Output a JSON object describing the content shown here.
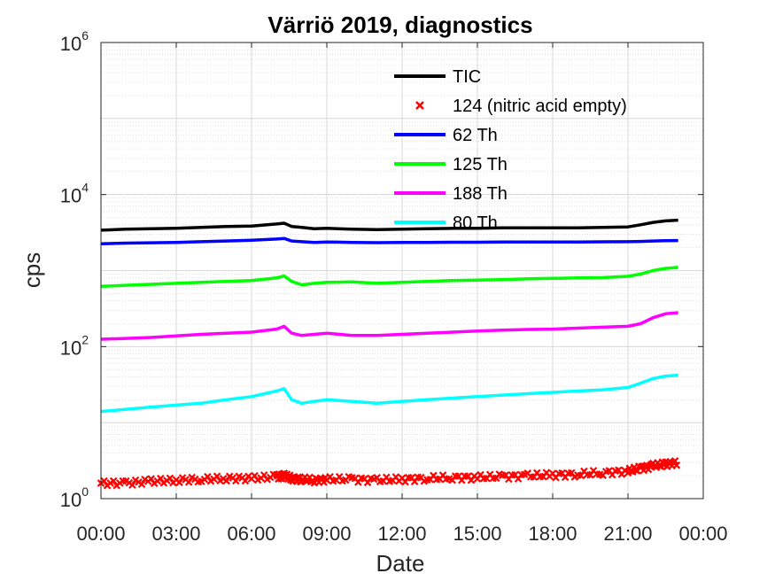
{
  "chart_data": {
    "type": "line",
    "title": "Värriö 2019, diagnostics",
    "xlabel": "Date",
    "ylabel": "cps",
    "yscale": "log",
    "ylim": [
      1,
      1000000
    ],
    "xlim_hours": [
      0,
      24
    ],
    "x_tick_labels": [
      "00:00",
      "03:00",
      "06:00",
      "09:00",
      "12:00",
      "15:00",
      "18:00",
      "21:00",
      "00:00"
    ],
    "y_ticks": [
      {
        "base": "10",
        "exp": "0"
      },
      {
        "base": "10",
        "exp": "2"
      },
      {
        "base": "10",
        "exp": "4"
      },
      {
        "base": "10",
        "exp": "6"
      }
    ],
    "grid": true,
    "legend_position": "top-right",
    "x_hours": [
      0,
      1,
      2,
      3,
      4,
      5,
      6,
      7,
      7.3,
      7.6,
      8,
      8.5,
      9,
      10,
      11,
      12,
      13,
      14,
      15,
      16,
      17,
      18,
      19,
      20,
      21,
      21.5,
      22,
      22.5,
      23
    ],
    "series": [
      {
        "name": "TIC",
        "style": "line",
        "color": "#000000",
        "values": [
          3400,
          3500,
          3550,
          3600,
          3700,
          3800,
          3850,
          4100,
          4200,
          3800,
          3700,
          3550,
          3600,
          3500,
          3450,
          3500,
          3550,
          3600,
          3600,
          3650,
          3650,
          3650,
          3650,
          3700,
          3750,
          4000,
          4300,
          4500,
          4600
        ]
      },
      {
        "name": "62 Th",
        "style": "line",
        "color": "#0000ff",
        "values": [
          2250,
          2300,
          2320,
          2350,
          2400,
          2450,
          2500,
          2600,
          2650,
          2450,
          2400,
          2350,
          2380,
          2350,
          2330,
          2340,
          2350,
          2360,
          2360,
          2370,
          2370,
          2380,
          2380,
          2390,
          2400,
          2420,
          2450,
          2470,
          2480
        ]
      },
      {
        "name": "125 Th",
        "style": "line",
        "color": "#00ff00",
        "values": [
          620,
          640,
          660,
          680,
          700,
          720,
          740,
          800,
          850,
          720,
          650,
          680,
          700,
          710,
          680,
          700,
          720,
          740,
          750,
          760,
          780,
          790,
          800,
          810,
          840,
          900,
          1000,
          1070,
          1100
        ]
      },
      {
        "name": "188 Th",
        "style": "line",
        "color": "#ff00ff",
        "values": [
          125,
          128,
          132,
          138,
          145,
          150,
          155,
          170,
          185,
          150,
          140,
          145,
          150,
          140,
          140,
          145,
          150,
          155,
          160,
          165,
          168,
          170,
          175,
          180,
          185,
          200,
          240,
          270,
          280
        ]
      },
      {
        "name": "80 Th",
        "style": "line",
        "color": "#00ffff",
        "values": [
          14,
          15,
          16,
          17,
          18,
          20,
          22,
          26,
          28,
          20,
          18,
          19,
          20,
          19,
          18,
          19,
          20,
          21,
          22,
          23,
          24,
          25,
          26,
          27,
          29,
          33,
          38,
          41,
          42
        ]
      },
      {
        "name": "124 (nitric acid empty)",
        "style": "markers",
        "marker": "x",
        "color": "#ff0000",
        "values": [
          1.6,
          1.6,
          1.7,
          1.75,
          1.8,
          1.85,
          1.85,
          1.95,
          2.0,
          1.85,
          1.8,
          1.75,
          1.8,
          1.8,
          1.75,
          1.8,
          1.85,
          1.9,
          1.9,
          1.95,
          2.0,
          2.05,
          2.1,
          2.2,
          2.3,
          2.5,
          2.7,
          2.85,
          3.0
        ]
      }
    ]
  }
}
